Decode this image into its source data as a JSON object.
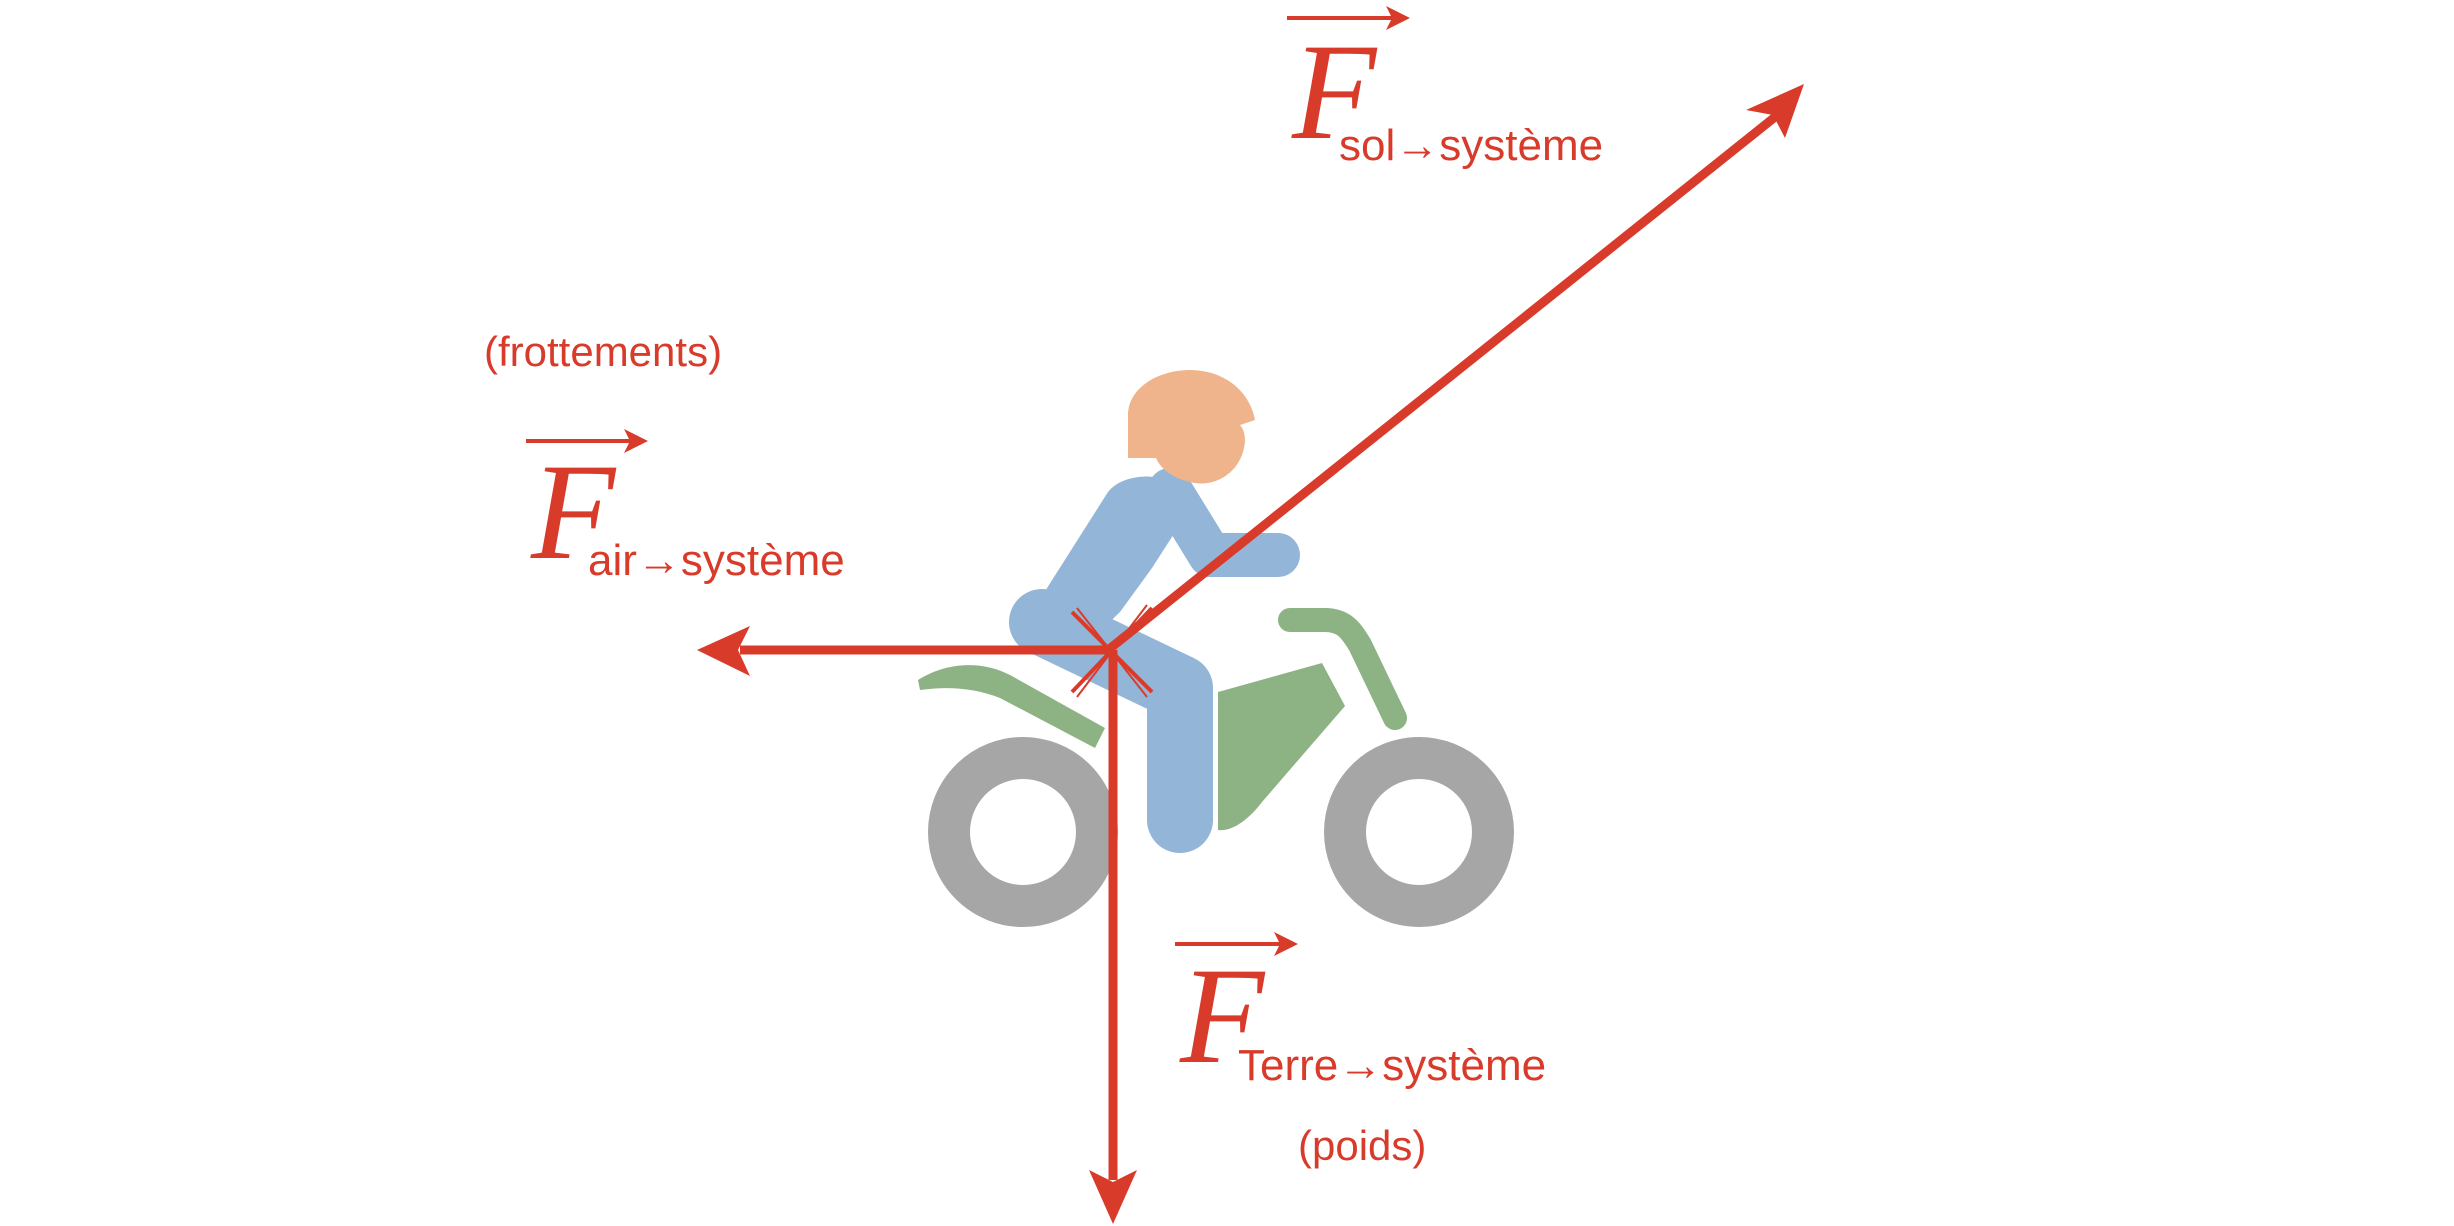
{
  "colors": {
    "force": "#d93b2b",
    "helmet": "#f0b48c",
    "rider": "#93b5d8",
    "bike": "#8db283",
    "wheel": "#a6a6a6",
    "background": "#ffffff"
  },
  "forces": {
    "sol": {
      "symbol": "F",
      "subscript": "sol→système"
    },
    "air": {
      "symbol": "F",
      "subscript": "air→système",
      "note": "(frottements)"
    },
    "terre": {
      "symbol": "F",
      "subscript": "Terre→système",
      "note": "(poids)"
    }
  },
  "icons": {
    "figure": "motorcycle-rider-icon",
    "application_point": "cross-marker-icon"
  }
}
